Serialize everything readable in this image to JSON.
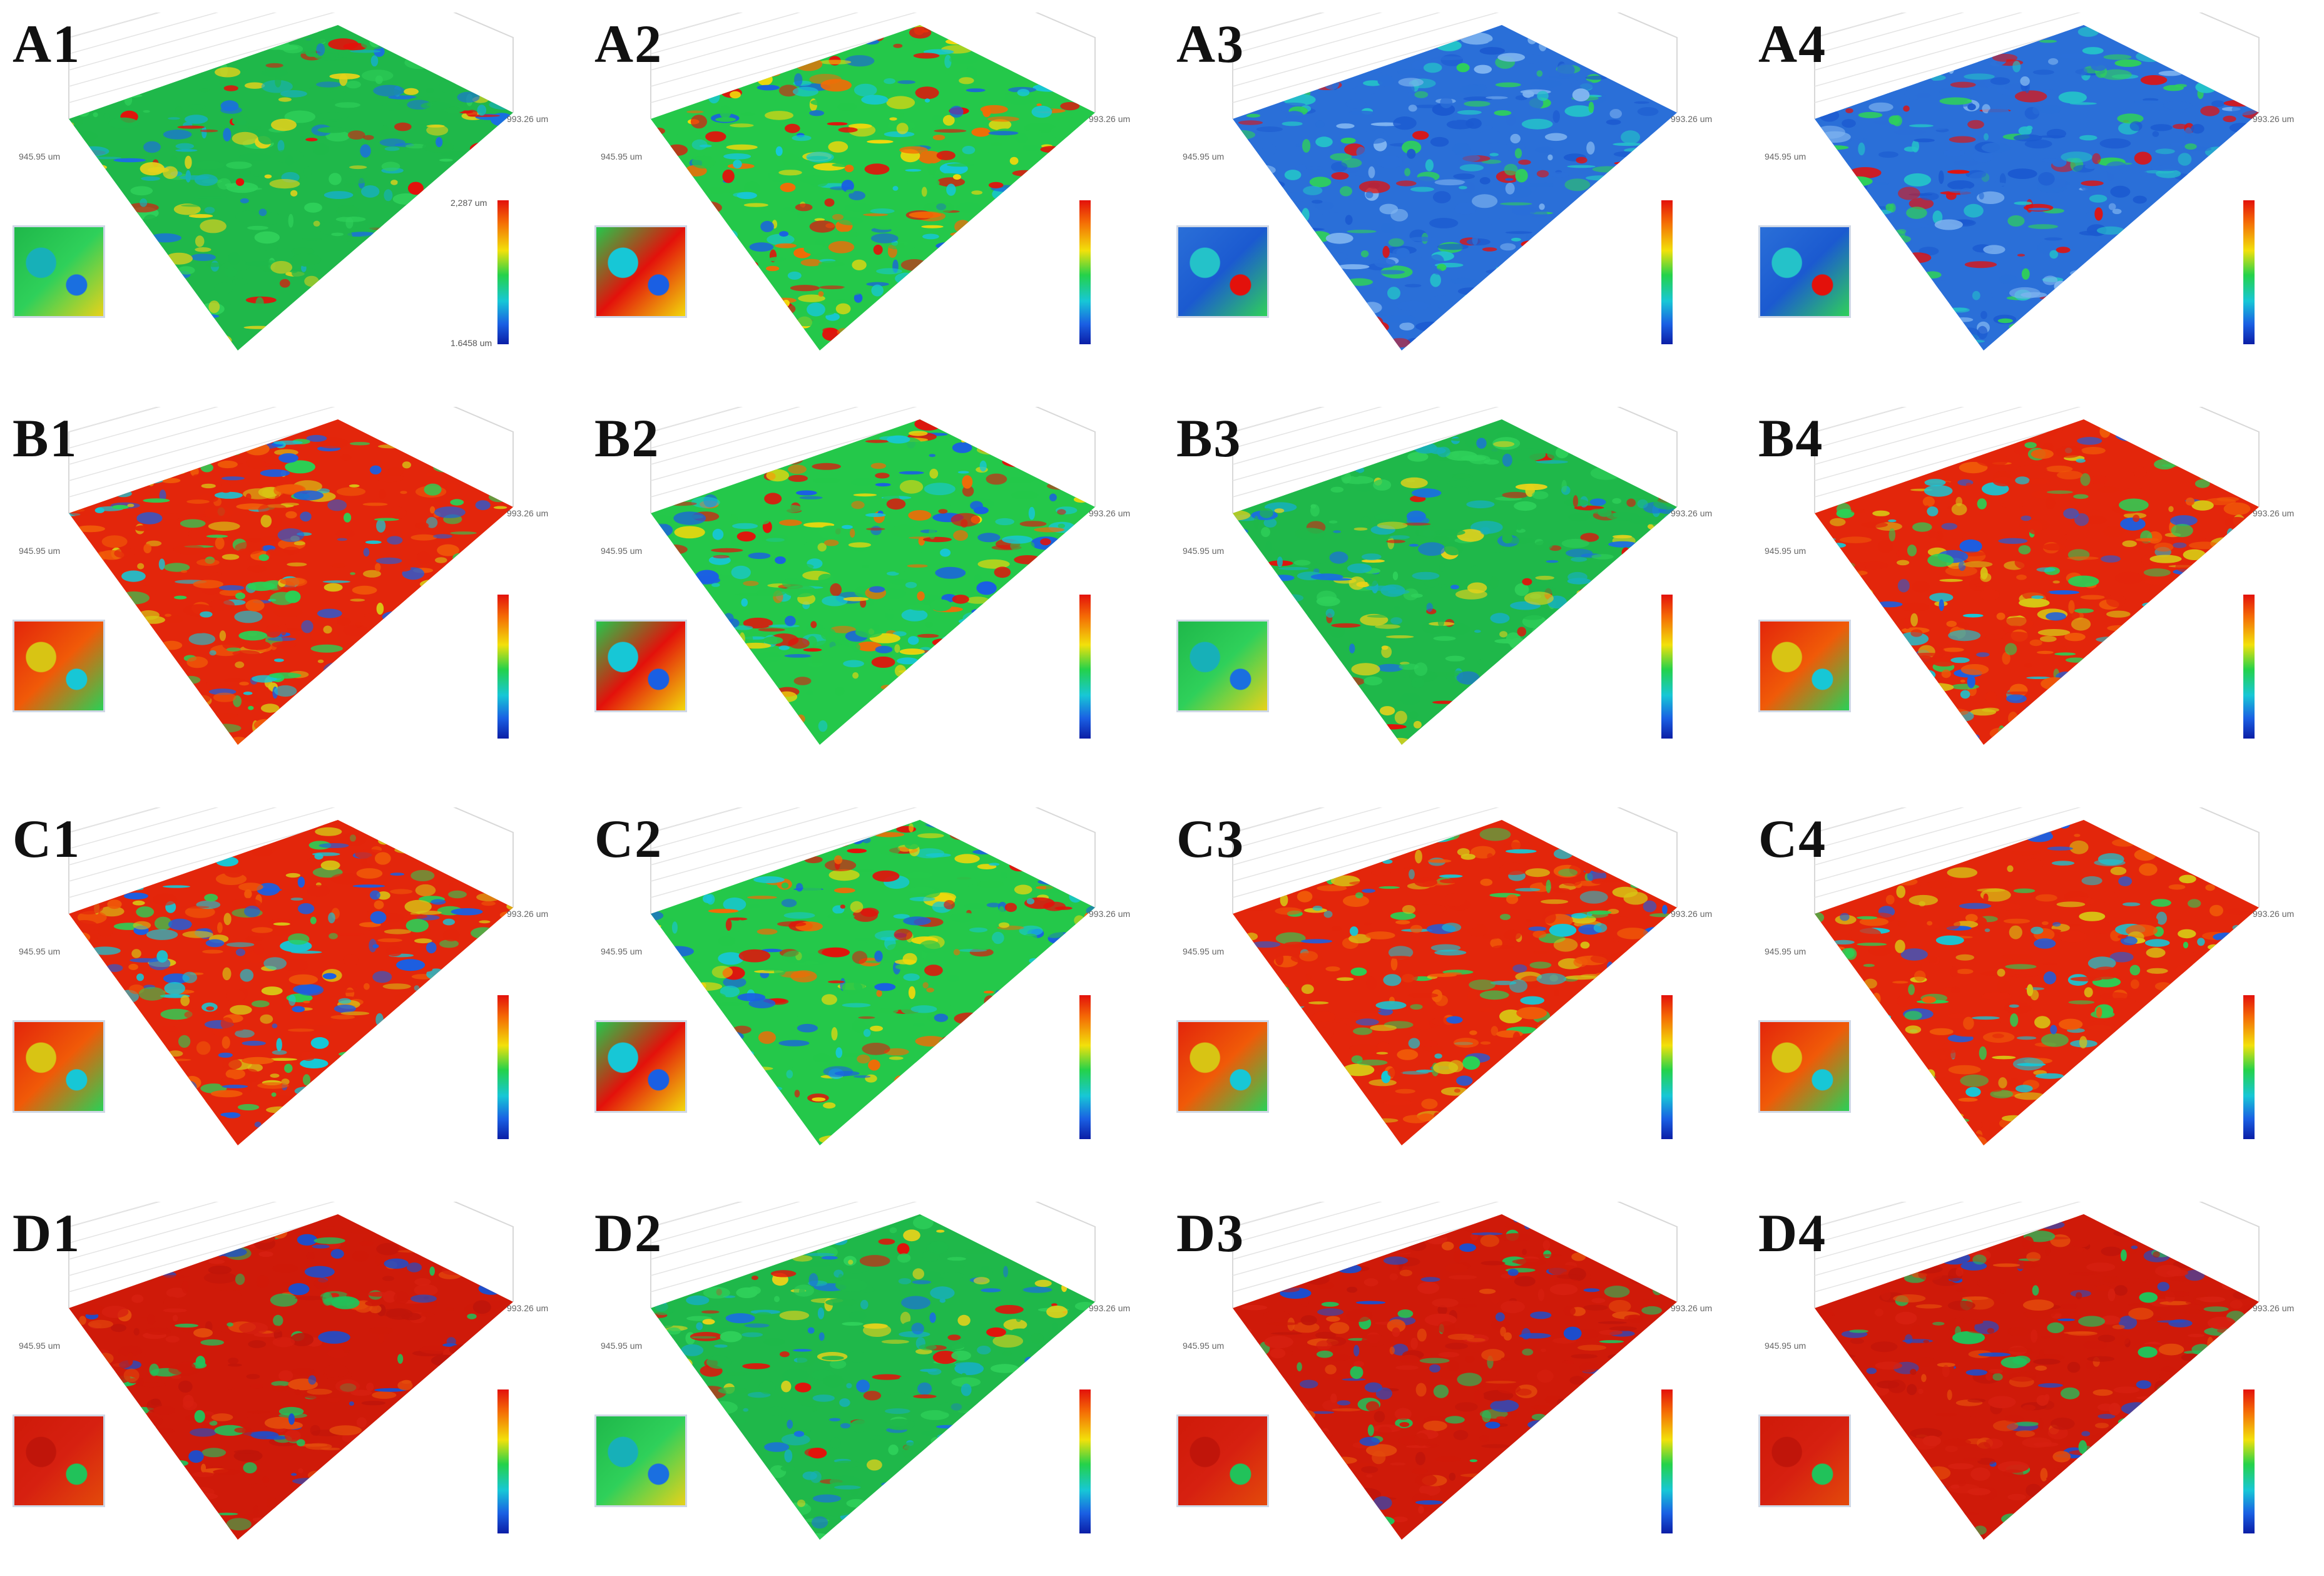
{
  "panels": [
    {
      "label": "A1",
      "palette": "green",
      "scale_top": "2,287 um",
      "scale_bot": "1.6458 um"
    },
    {
      "label": "A2",
      "palette": "mixed",
      "scale_top": "",
      "scale_bot": ""
    },
    {
      "label": "A3",
      "palette": "blue",
      "scale_top": "",
      "scale_bot": ""
    },
    {
      "label": "A4",
      "palette": "blue",
      "scale_top": "",
      "scale_bot": ""
    },
    {
      "label": "B1",
      "palette": "red",
      "scale_top": "",
      "scale_bot": ""
    },
    {
      "label": "B2",
      "palette": "mixed",
      "scale_top": "",
      "scale_bot": ""
    },
    {
      "label": "B3",
      "palette": "green",
      "scale_top": "",
      "scale_bot": ""
    },
    {
      "label": "B4",
      "palette": "red",
      "scale_top": "",
      "scale_bot": ""
    },
    {
      "label": "C1",
      "palette": "red",
      "scale_top": "",
      "scale_bot": ""
    },
    {
      "label": "C2",
      "palette": "mixed",
      "scale_top": "",
      "scale_bot": ""
    },
    {
      "label": "C3",
      "palette": "red",
      "scale_top": "",
      "scale_bot": ""
    },
    {
      "label": "C4",
      "palette": "red",
      "scale_top": "",
      "scale_bot": ""
    },
    {
      "label": "D1",
      "palette": "deepred",
      "scale_top": "",
      "scale_bot": ""
    },
    {
      "label": "D2",
      "palette": "green",
      "scale_top": "",
      "scale_bot": ""
    },
    {
      "label": "D3",
      "palette": "deepred",
      "scale_top": "",
      "scale_bot": ""
    },
    {
      "label": "D4",
      "palette": "deepred",
      "scale_top": "",
      "scale_bot": ""
    }
  ],
  "axis_labels": {
    "corner_right": "993.26 um",
    "corner_left": "945.95 um"
  },
  "colors": {
    "red": "#e3110b",
    "orange": "#f46a05",
    "yellow": "#f2e10b",
    "green": "#24d24a",
    "cyan": "#17c7d6",
    "blue": "#1a5fe3",
    "navy": "#0b1ea6"
  }
}
